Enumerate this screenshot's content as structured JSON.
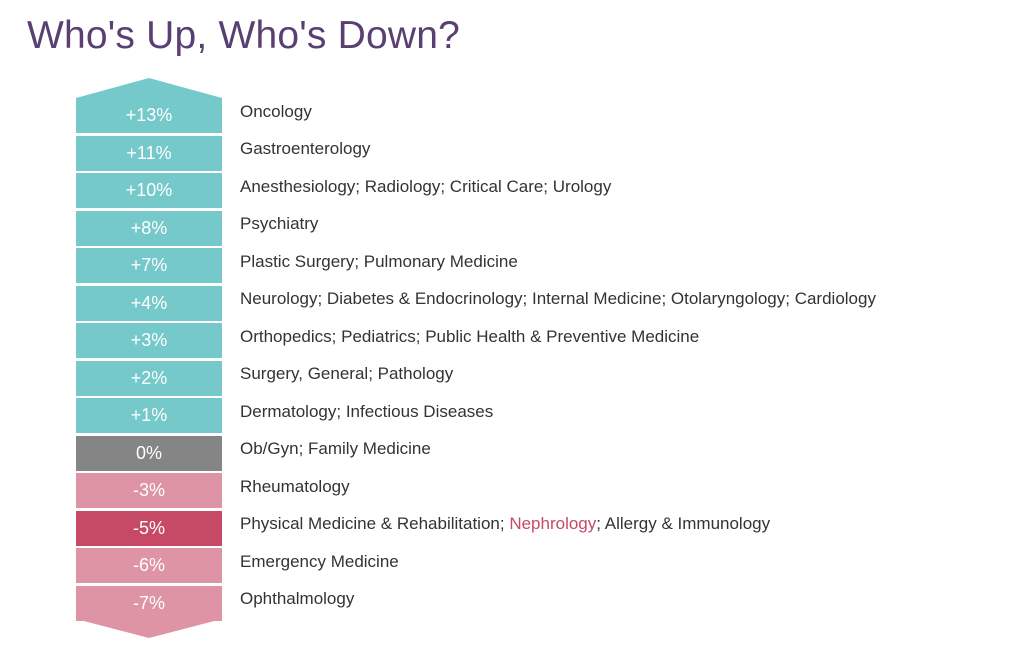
{
  "title": "Who's Up, Who's Down?",
  "colors": {
    "up": "#76c9cb",
    "zero": "#858585",
    "down": "#de94a4",
    "highlight": "#c64a65",
    "highlight_text": "#c64a65",
    "title": "#5a3f72"
  },
  "chart_data": {
    "type": "table",
    "title": "Who's Up, Who's Down?",
    "rows": [
      {
        "change": "+13%",
        "value": 13,
        "segments": [
          {
            "text": "Oncology"
          }
        ]
      },
      {
        "change": "+11%",
        "value": 11,
        "segments": [
          {
            "text": "Gastroenterology"
          }
        ]
      },
      {
        "change": "+10%",
        "value": 10,
        "segments": [
          {
            "text": "Anesthesiology; Radiology; Critical Care; Urology"
          }
        ]
      },
      {
        "change": "+8%",
        "value": 8,
        "segments": [
          {
            "text": "Psychiatry"
          }
        ]
      },
      {
        "change": "+7%",
        "value": 7,
        "segments": [
          {
            "text": "Plastic Surgery; Pulmonary Medicine"
          }
        ]
      },
      {
        "change": "+4%",
        "value": 4,
        "segments": [
          {
            "text": "Neurology; Diabetes & Endocrinology; Internal Medicine; Otolaryngology; Cardiology"
          }
        ]
      },
      {
        "change": "+3%",
        "value": 3,
        "segments": [
          {
            "text": "Orthopedics; Pediatrics; Public Health & Preventive Medicine"
          }
        ]
      },
      {
        "change": "+2%",
        "value": 2,
        "segments": [
          {
            "text": "Surgery, General; Pathology"
          }
        ]
      },
      {
        "change": "+1%",
        "value": 1,
        "segments": [
          {
            "text": "Dermatology; Infectious Diseases"
          }
        ]
      },
      {
        "change": "0%",
        "value": 0,
        "segments": [
          {
            "text": "Ob/Gyn; Family Medicine"
          }
        ]
      },
      {
        "change": "-3%",
        "value": -3,
        "segments": [
          {
            "text": "Rheumatology"
          }
        ]
      },
      {
        "change": "-5%",
        "value": -5,
        "highlight": true,
        "segments": [
          {
            "text": "Physical Medicine & Rehabilitation; "
          },
          {
            "text": "Nephrology",
            "highlight": true
          },
          {
            "text": "; Allergy & Immunology"
          }
        ]
      },
      {
        "change": "-6%",
        "value": -6,
        "segments": [
          {
            "text": "Emergency Medicine"
          }
        ]
      },
      {
        "change": "-7%",
        "value": -7,
        "segments": [
          {
            "text": "Ophthalmology"
          }
        ]
      }
    ]
  }
}
